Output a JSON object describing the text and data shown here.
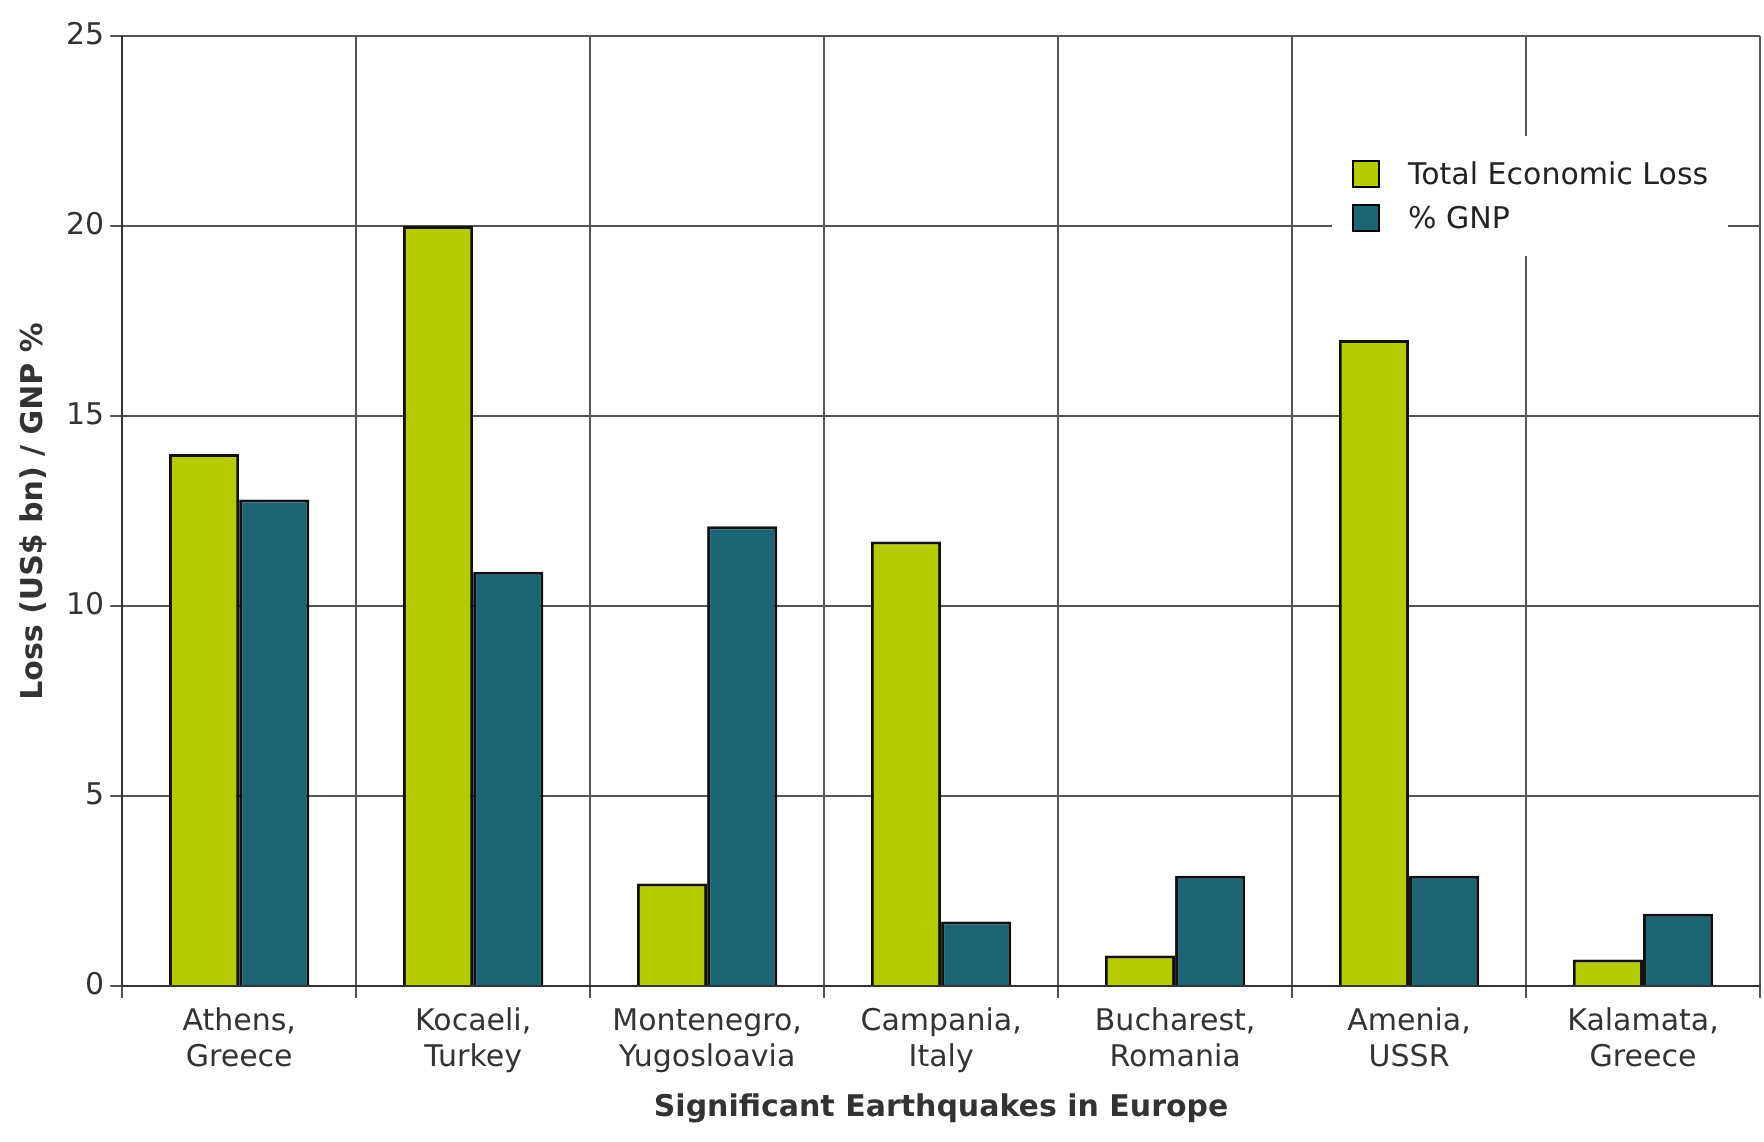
{
  "chart_data": {
    "type": "bar",
    "xlabel": "Significant Earthquakes in Europe",
    "ylabel": "Loss (US$ bn) / GNP %",
    "categories": [
      "Athens, Greece",
      "Kocaeli, Turkey",
      "Montenegro, Yugosloavia",
      "Campania, Italy",
      "Bucharest, Romania",
      "Amenia, USSR",
      "Kalamata, Greece"
    ],
    "series": [
      {
        "name": "Total Economic Loss",
        "color": "#b5cc00",
        "values": [
          14,
          20,
          2.7,
          11.7,
          0.8,
          17,
          0.7
        ]
      },
      {
        "name": "% GNP",
        "color": "#1b6575",
        "values": [
          12.8,
          10.9,
          12.1,
          1.7,
          2.9,
          2.9,
          1.9
        ]
      }
    ],
    "ylim": [
      0,
      25
    ],
    "yticks": [
      0,
      5,
      10,
      15,
      20,
      25
    ],
    "grid": true,
    "legend": "top right"
  }
}
